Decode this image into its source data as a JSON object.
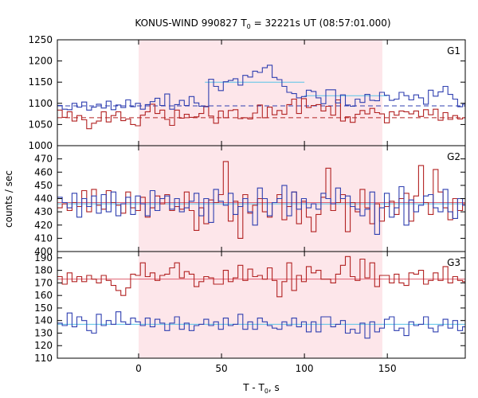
{
  "chart_data": {
    "type": "line",
    "title_main": "KONUS-WIND 990827 T",
    "title_sub": "0",
    "title_rest": " = 32221s UT (08:57:01.000)",
    "xlabel_main": "T - T",
    "xlabel_sub": "0",
    "xlabel_rest": ", s",
    "ylabel": "counts / sec",
    "xlim": [
      -49,
      197
    ],
    "x_ticks": [
      0,
      50,
      100,
      150
    ],
    "step": 2.944,
    "highlight_interval": [
      0,
      147
    ],
    "colors": {
      "red": "#b22222",
      "blue": "#2f3fb0",
      "red_bg": "#e06070",
      "blue_bg": "#57c3e8",
      "shade": "#fde6ea"
    },
    "panels": [
      {
        "label": "G1",
        "ylim": [
          1000,
          1250
        ],
        "yticks": [
          1000,
          1050,
          1100,
          1150,
          1200,
          1250
        ],
        "background_red": 1066,
        "background_blue": 1094,
        "fit_blue": {
          "x": [
            40,
            100
          ],
          "y": [
            1150,
            1150
          ]
        },
        "fit_blue2": {
          "x": [
            100,
            150
          ],
          "y": [
            1118,
            1118
          ]
        },
        "series": [
          {
            "color": "red",
            "values": [
              1084,
              1067,
              1080,
              1058,
              1071,
              1061,
              1040,
              1053,
              1058,
              1080,
              1056,
              1071,
              1080,
              1059,
              1063,
              1050,
              1047,
              1072,
              1080,
              1098,
              1076,
              1084,
              1062,
              1048,
              1084,
              1065,
              1074,
              1067,
              1068,
              1076,
              1093,
              1070,
              1053,
              1082,
              1066,
              1083,
              1085,
              1064,
              1066,
              1063,
              1077,
              1096,
              1066,
              1091,
              1073,
              1083,
              1074,
              1097,
              1110,
              1076,
              1111,
              1090,
              1095,
              1097,
              1082,
              1093,
              1072,
              1108,
              1058,
              1068,
              1055,
              1074,
              1083,
              1075,
              1088,
              1078,
              1075,
              1054,
              1080,
              1072,
              1082,
              1080,
              1075,
              1082,
              1069,
              1085,
              1073,
              1086,
              1060,
              1078,
              1062,
              1071,
              1063,
              1066
            ]
          },
          {
            "color": "blue",
            "values": [
              1095,
              1086,
              1085,
              1100,
              1091,
              1103,
              1084,
              1091,
              1098,
              1089,
              1105,
              1085,
              1096,
              1090,
              1108,
              1092,
              1100,
              1086,
              1097,
              1104,
              1112,
              1095,
              1122,
              1086,
              1097,
              1107,
              1095,
              1116,
              1101,
              1093,
              1092,
              1157,
              1140,
              1130,
              1151,
              1154,
              1158,
              1143,
              1166,
              1162,
              1176,
              1173,
              1184,
              1190,
              1161,
              1156,
              1140,
              1126,
              1123,
              1113,
              1116,
              1131,
              1128,
              1113,
              1099,
              1132,
              1132,
              1101,
              1120,
              1096,
              1093,
              1110,
              1102,
              1121,
              1107,
              1106,
              1126,
              1119,
              1107,
              1110,
              1126,
              1118,
              1108,
              1120,
              1113,
              1098,
              1131,
              1117,
              1127,
              1140,
              1121,
              1110,
              1092,
              1098
            ]
          }
        ]
      },
      {
        "label": "G2",
        "ylim": [
          400,
          480
        ],
        "yticks": [
          400,
          410,
          420,
          430,
          440,
          450,
          460,
          470
        ],
        "background_red": 437,
        "background_blue": 436,
        "series": [
          {
            "color": "red",
            "values": [
              433,
              436,
              431,
              437,
              434,
              446,
              430,
              447,
              435,
              432,
              446,
              437,
              435,
              429,
              445,
              433,
              431,
              441,
              426,
              433,
              442,
              436,
              443,
              431,
              434,
              432,
              445,
              431,
              416,
              433,
              421,
              439,
              437,
              443,
              468,
              423,
              438,
              410,
              443,
              429,
              435,
              440,
              430,
              426,
              437,
              443,
              424,
              434,
              445,
              421,
              438,
              426,
              415,
              428,
              441,
              463,
              431,
              437,
              443,
              415,
              437,
              430,
              447,
              433,
              421,
              436,
              423,
              434,
              438,
              428,
              440,
              444,
              423,
              442,
              465,
              437,
              428,
              462,
              445,
              433,
              424,
              440,
              431,
              436
            ]
          },
          {
            "color": "blue",
            "values": [
              441,
              437,
              433,
              444,
              426,
              440,
              434,
              442,
              429,
              443,
              430,
              445,
              427,
              436,
              441,
              428,
              442,
              436,
              427,
              446,
              431,
              440,
              442,
              432,
              440,
              430,
              433,
              438,
              444,
              427,
              440,
              422,
              447,
              438,
              435,
              444,
              428,
              434,
              440,
              430,
              420,
              448,
              440,
              427,
              437,
              440,
              450,
              427,
              445,
              432,
              440,
              433,
              436,
              432,
              444,
              440,
              436,
              448,
              440,
              442,
              434,
              432,
              427,
              432,
              445,
              413,
              433,
              444,
              426,
              433,
              449,
              420,
              439,
              430,
              435,
              442,
              443,
              433,
              430,
              447,
              430,
              425,
              440,
              435
            ]
          }
        ]
      },
      {
        "label": "G3",
        "ylim": [
          110,
          195
        ],
        "yticks": [
          110,
          120,
          130,
          140,
          150,
          160,
          170,
          180,
          190
        ],
        "background_red": 173,
        "background_blue": 137,
        "series": [
          {
            "color": "red",
            "values": [
              175,
              169,
              178,
              171,
              175,
              171,
              176,
              173,
              170,
              176,
              172,
              168,
              164,
              160,
              166,
              177,
              176,
              186,
              175,
              178,
              172,
              176,
              177,
              182,
              186,
              174,
              179,
              177,
              167,
              171,
              175,
              174,
              169,
              169,
              180,
              171,
              174,
              184,
              172,
              181,
              175,
              176,
              173,
              182,
              172,
              159,
              171,
              186,
              164,
              176,
              171,
              183,
              178,
              180,
              173,
              173,
              170,
              177,
              184,
              191,
              175,
              172,
              189,
              174,
              186,
              167,
              176,
              176,
              170,
              177,
              170,
              168,
              178,
              177,
              180,
              169,
              172,
              178,
              172,
              183,
              170,
              175,
              172,
              171
            ]
          },
          {
            "color": "blue",
            "values": [
              138,
              136,
              146,
              135,
              143,
              140,
              132,
              130,
              145,
              136,
              140,
              137,
              147,
              139,
              137,
              142,
              139,
              136,
              142,
              135,
              141,
              138,
              132,
              138,
              143,
              133,
              138,
              132,
              136,
              137,
              141,
              136,
              139,
              133,
              142,
              136,
              137,
              145,
              133,
              139,
              133,
              142,
              139,
              136,
              134,
              133,
              139,
              136,
              142,
              135,
              139,
              131,
              139,
              131,
              143,
              143,
              135,
              137,
              140,
              130,
              133,
              130,
              138,
              126,
              139,
              131,
              134,
              141,
              143,
              132,
              134,
              128,
              139,
              136,
              137,
              143,
              134,
              131,
              136,
              141,
              134,
              140,
              132,
              135
            ]
          }
        ]
      }
    ]
  }
}
